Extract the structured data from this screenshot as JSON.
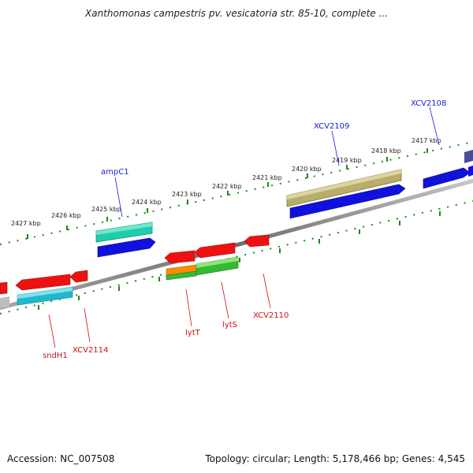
{
  "title": "Xanthomonas campestris pv. vesicatoria str. 85-10, complete ...",
  "footer": {
    "accession": "Accession: NC_007508",
    "summary": "Topology: circular; Length: 5,178,466 bp; Genes: 4,545"
  },
  "colors": {
    "backbone": "#8a8a8a",
    "tick": "#1a8a1a",
    "forward_label": "#1a1ad8",
    "reverse_label": "#cc1111",
    "red_gene": "#ee1111",
    "blue_gene": "#1111dd",
    "teal_gene": "#22ccaa",
    "olive_gene": "#b7ae6a",
    "cyan_gene": "#22b8cc",
    "green_gene": "#33bb33",
    "orange_gene": "#ff8c00"
  },
  "scale_labels": [
    "2427 kbp",
    "2426 kbp",
    "2425 kbp",
    "2424 kbp",
    "2423 kbp",
    "2422 kbp",
    "2421 kbp",
    "2420 kbp",
    "2419 kbp",
    "2418 kbp",
    "2417 kbp"
  ],
  "gene_labels": {
    "forward": [
      "ampC1",
      "XCV2109",
      "XCV2108"
    ],
    "reverse": [
      "sndH1",
      "XCV2114",
      "lytT",
      "lytS",
      "XCV2110"
    ]
  }
}
